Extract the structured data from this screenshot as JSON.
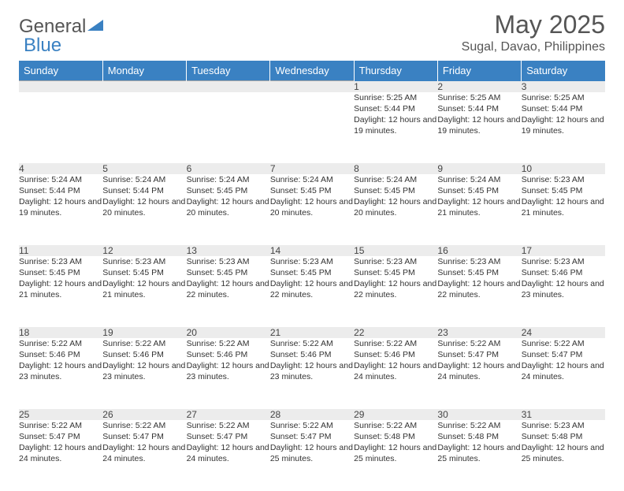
{
  "logo": {
    "text1": "General",
    "text2": "Blue",
    "color1": "#6b6b6b",
    "color2": "#3a81c2"
  },
  "title": "May 2025",
  "location": "Sugal, Davao, Philippines",
  "header_bg": "#3a81c2",
  "header_fg": "#ffffff",
  "daynum_bg": "#ececec",
  "daynum_border": "#a6a6a6",
  "columns": [
    "Sunday",
    "Monday",
    "Tuesday",
    "Wednesday",
    "Thursday",
    "Friday",
    "Saturday"
  ],
  "weeks": [
    [
      null,
      null,
      null,
      null,
      {
        "n": "1",
        "sr": "5:25 AM",
        "ss": "5:44 PM",
        "dl": "12 hours and 19 minutes."
      },
      {
        "n": "2",
        "sr": "5:25 AM",
        "ss": "5:44 PM",
        "dl": "12 hours and 19 minutes."
      },
      {
        "n": "3",
        "sr": "5:25 AM",
        "ss": "5:44 PM",
        "dl": "12 hours and 19 minutes."
      }
    ],
    [
      {
        "n": "4",
        "sr": "5:24 AM",
        "ss": "5:44 PM",
        "dl": "12 hours and 19 minutes."
      },
      {
        "n": "5",
        "sr": "5:24 AM",
        "ss": "5:44 PM",
        "dl": "12 hours and 20 minutes."
      },
      {
        "n": "6",
        "sr": "5:24 AM",
        "ss": "5:45 PM",
        "dl": "12 hours and 20 minutes."
      },
      {
        "n": "7",
        "sr": "5:24 AM",
        "ss": "5:45 PM",
        "dl": "12 hours and 20 minutes."
      },
      {
        "n": "8",
        "sr": "5:24 AM",
        "ss": "5:45 PM",
        "dl": "12 hours and 20 minutes."
      },
      {
        "n": "9",
        "sr": "5:24 AM",
        "ss": "5:45 PM",
        "dl": "12 hours and 21 minutes."
      },
      {
        "n": "10",
        "sr": "5:23 AM",
        "ss": "5:45 PM",
        "dl": "12 hours and 21 minutes."
      }
    ],
    [
      {
        "n": "11",
        "sr": "5:23 AM",
        "ss": "5:45 PM",
        "dl": "12 hours and 21 minutes."
      },
      {
        "n": "12",
        "sr": "5:23 AM",
        "ss": "5:45 PM",
        "dl": "12 hours and 21 minutes."
      },
      {
        "n": "13",
        "sr": "5:23 AM",
        "ss": "5:45 PM",
        "dl": "12 hours and 22 minutes."
      },
      {
        "n": "14",
        "sr": "5:23 AM",
        "ss": "5:45 PM",
        "dl": "12 hours and 22 minutes."
      },
      {
        "n": "15",
        "sr": "5:23 AM",
        "ss": "5:45 PM",
        "dl": "12 hours and 22 minutes."
      },
      {
        "n": "16",
        "sr": "5:23 AM",
        "ss": "5:45 PM",
        "dl": "12 hours and 22 minutes."
      },
      {
        "n": "17",
        "sr": "5:23 AM",
        "ss": "5:46 PM",
        "dl": "12 hours and 23 minutes."
      }
    ],
    [
      {
        "n": "18",
        "sr": "5:22 AM",
        "ss": "5:46 PM",
        "dl": "12 hours and 23 minutes."
      },
      {
        "n": "19",
        "sr": "5:22 AM",
        "ss": "5:46 PM",
        "dl": "12 hours and 23 minutes."
      },
      {
        "n": "20",
        "sr": "5:22 AM",
        "ss": "5:46 PM",
        "dl": "12 hours and 23 minutes."
      },
      {
        "n": "21",
        "sr": "5:22 AM",
        "ss": "5:46 PM",
        "dl": "12 hours and 23 minutes."
      },
      {
        "n": "22",
        "sr": "5:22 AM",
        "ss": "5:46 PM",
        "dl": "12 hours and 24 minutes."
      },
      {
        "n": "23",
        "sr": "5:22 AM",
        "ss": "5:47 PM",
        "dl": "12 hours and 24 minutes."
      },
      {
        "n": "24",
        "sr": "5:22 AM",
        "ss": "5:47 PM",
        "dl": "12 hours and 24 minutes."
      }
    ],
    [
      {
        "n": "25",
        "sr": "5:22 AM",
        "ss": "5:47 PM",
        "dl": "12 hours and 24 minutes."
      },
      {
        "n": "26",
        "sr": "5:22 AM",
        "ss": "5:47 PM",
        "dl": "12 hours and 24 minutes."
      },
      {
        "n": "27",
        "sr": "5:22 AM",
        "ss": "5:47 PM",
        "dl": "12 hours and 24 minutes."
      },
      {
        "n": "28",
        "sr": "5:22 AM",
        "ss": "5:47 PM",
        "dl": "12 hours and 25 minutes."
      },
      {
        "n": "29",
        "sr": "5:22 AM",
        "ss": "5:48 PM",
        "dl": "12 hours and 25 minutes."
      },
      {
        "n": "30",
        "sr": "5:22 AM",
        "ss": "5:48 PM",
        "dl": "12 hours and 25 minutes."
      },
      {
        "n": "31",
        "sr": "5:23 AM",
        "ss": "5:48 PM",
        "dl": "12 hours and 25 minutes."
      }
    ]
  ],
  "labels": {
    "sunrise": "Sunrise:",
    "sunset": "Sunset:",
    "daylight": "Daylight:"
  }
}
